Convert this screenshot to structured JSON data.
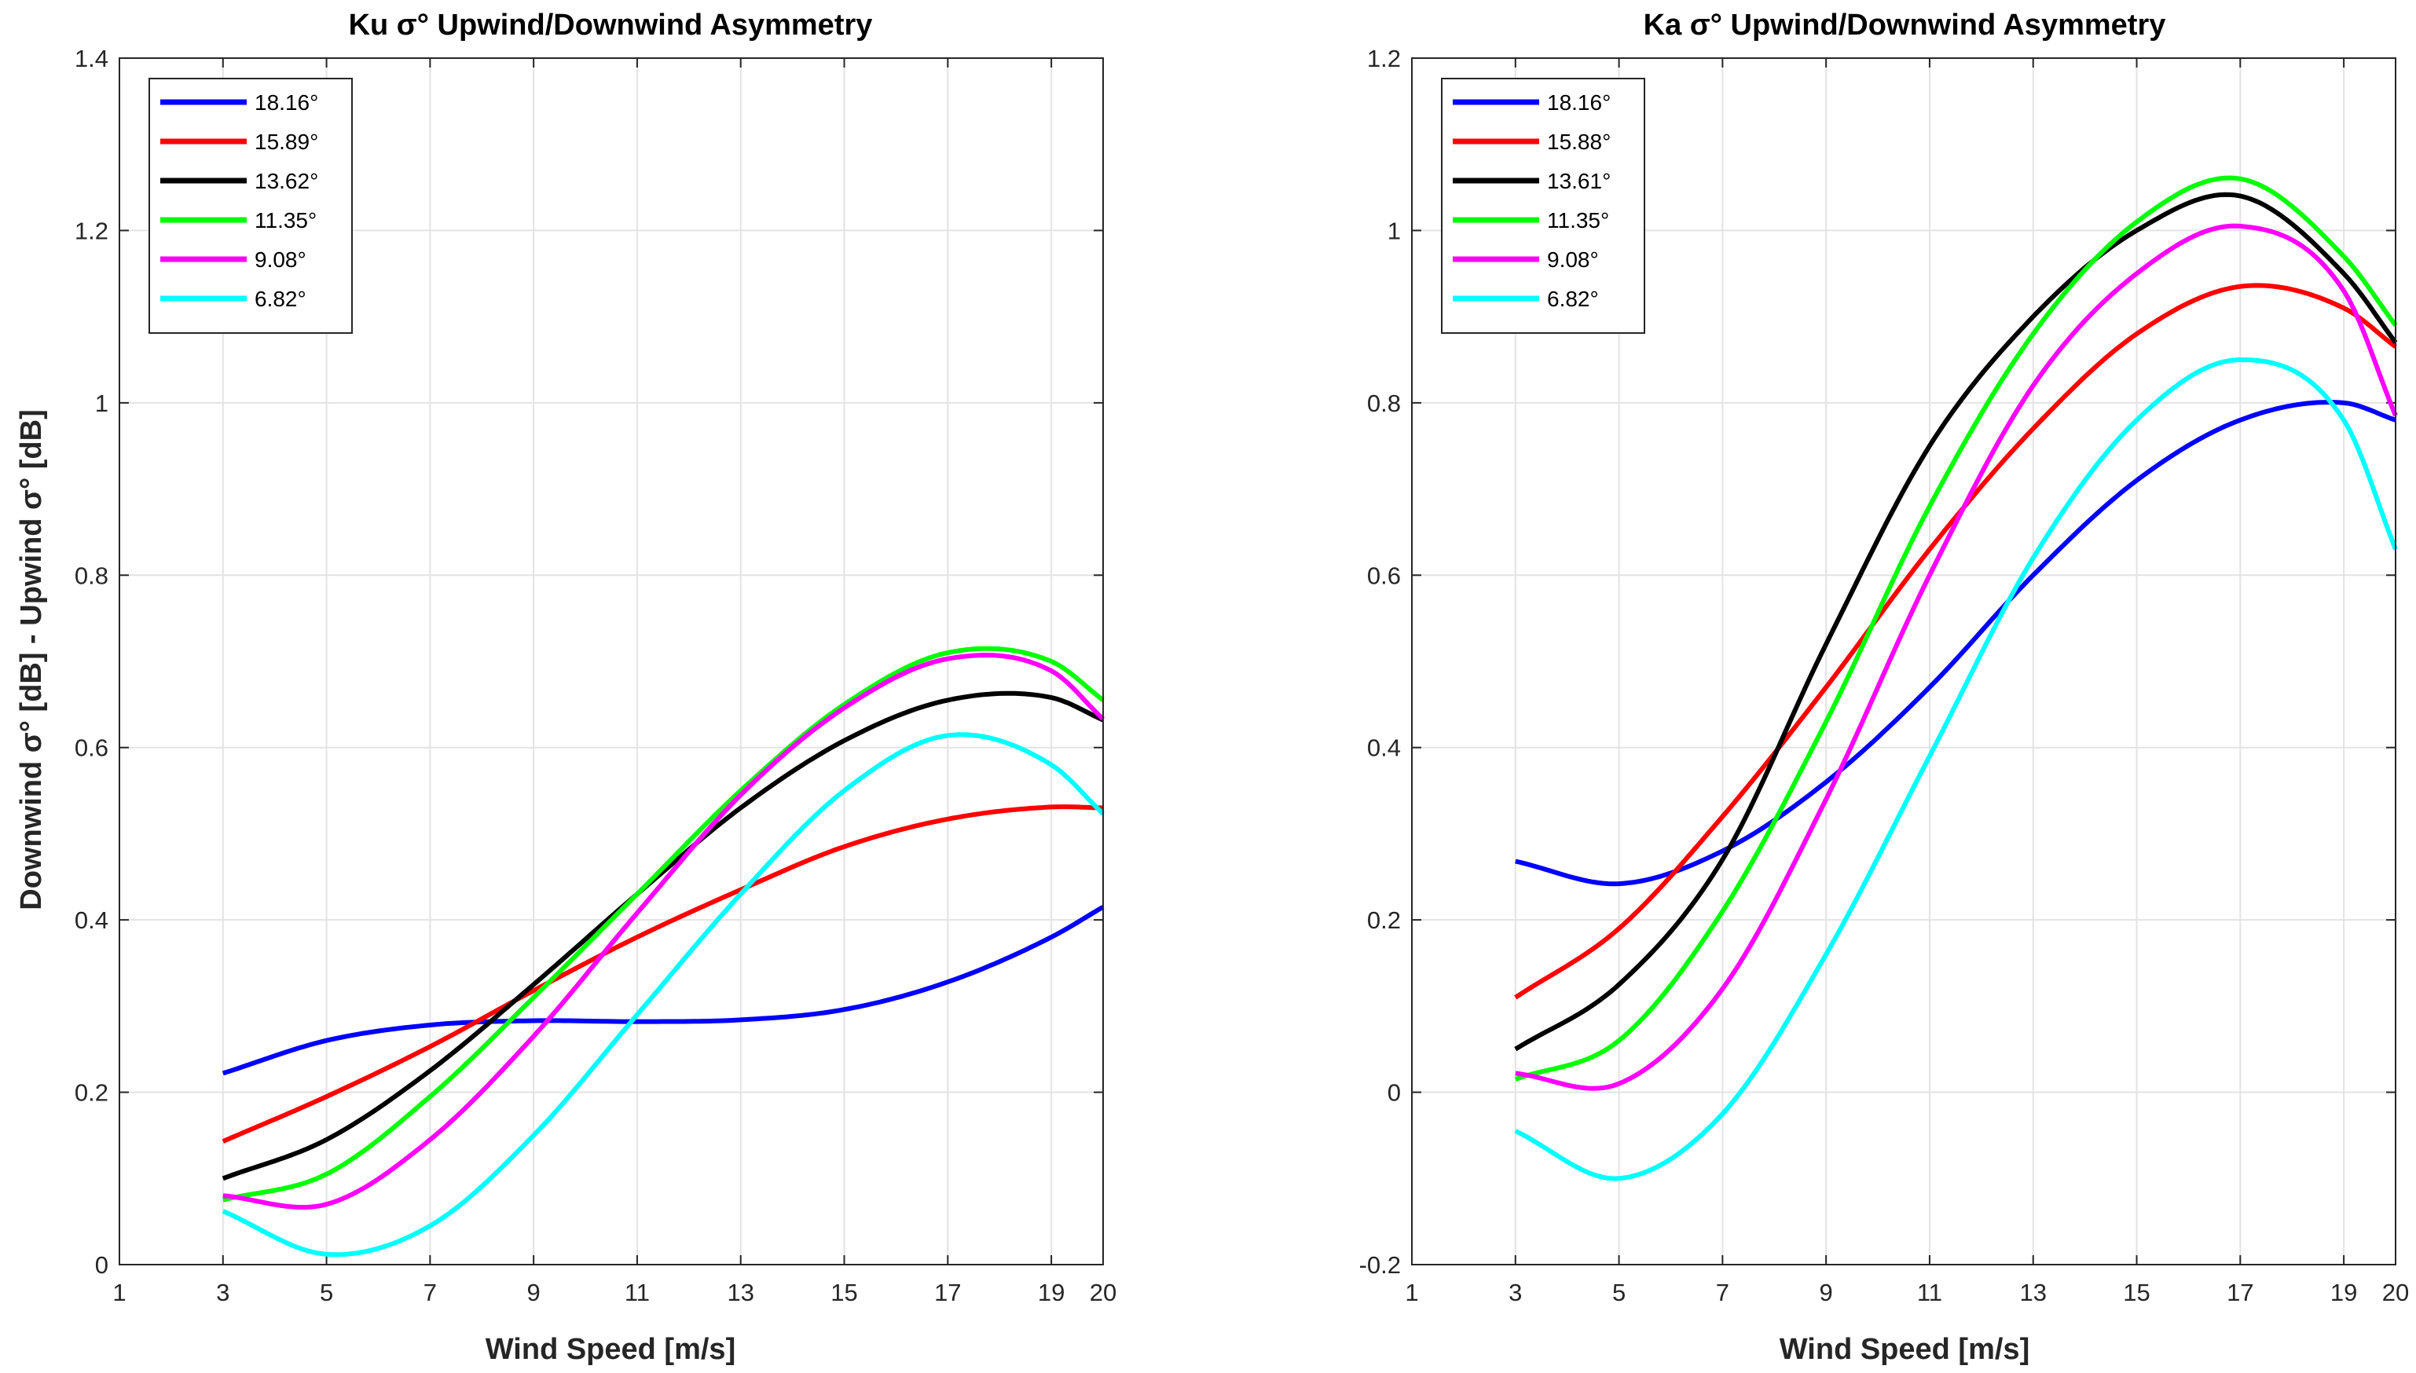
{
  "figure": {
    "legend_location": "top-left"
  },
  "chart_data": [
    {
      "type": "line",
      "title": "Ku σ° Upwind/Downwind Asymmetry",
      "xlabel": "Wind Speed [m/s]",
      "ylabel": "Downwind σ° [dB] - Upwind σ° [dB]",
      "xlim": [
        1,
        20
      ],
      "ylim": [
        0,
        1.4
      ],
      "xticks": [
        1,
        3,
        5,
        7,
        9,
        11,
        13,
        15,
        17,
        19,
        20
      ],
      "xtick_labels": [
        "1",
        "3",
        "5",
        "7",
        "9",
        "11",
        "13",
        "15",
        "17",
        "19",
        "20"
      ],
      "yticks": [
        0,
        0.2,
        0.4,
        0.6,
        0.8,
        1.0,
        1.2,
        1.4
      ],
      "ytick_labels": [
        "0",
        "0.2",
        "0.4",
        "0.6",
        "0.8",
        "1",
        "1.2",
        "1.4"
      ],
      "grid": true,
      "legend_location": "top-left",
      "x": [
        3,
        5,
        7,
        9,
        11,
        13,
        15,
        17,
        19,
        20
      ],
      "series": [
        {
          "name": "18.16°",
          "color": "#0000ff",
          "values": [
            0.222,
            0.26,
            0.278,
            0.283,
            0.282,
            0.284,
            0.296,
            0.328,
            0.38,
            0.415
          ]
        },
        {
          "name": "15.89°",
          "color": "#ff0000",
          "values": [
            0.143,
            0.195,
            0.253,
            0.318,
            0.38,
            0.435,
            0.485,
            0.517,
            0.531,
            0.53
          ]
        },
        {
          "name": "13.62°",
          "color": "#000000",
          "values": [
            0.1,
            0.145,
            0.225,
            0.325,
            0.43,
            0.53,
            0.608,
            0.655,
            0.658,
            0.632
          ]
        },
        {
          "name": "11.35°",
          "color": "#00ff00",
          "values": [
            0.075,
            0.105,
            0.195,
            0.31,
            0.43,
            0.55,
            0.65,
            0.71,
            0.7,
            0.655
          ]
        },
        {
          "name": "9.08°",
          "color": "#ff00ff",
          "values": [
            0.08,
            0.07,
            0.145,
            0.265,
            0.408,
            0.545,
            0.646,
            0.703,
            0.689,
            0.633
          ]
        },
        {
          "name": "6.82°",
          "color": "#00ffff",
          "values": [
            0.062,
            0.012,
            0.045,
            0.15,
            0.29,
            0.43,
            0.55,
            0.614,
            0.58,
            0.523
          ]
        }
      ]
    },
    {
      "type": "line",
      "title": "Ka σ° Upwind/Downwind Asymmetry",
      "xlabel": "Wind Speed [m/s]",
      "ylabel": "",
      "xlim": [
        1,
        20
      ],
      "ylim": [
        -0.2,
        1.2
      ],
      "xticks": [
        1,
        3,
        5,
        7,
        9,
        11,
        13,
        15,
        17,
        19,
        20
      ],
      "xtick_labels": [
        "1",
        "3",
        "5",
        "7",
        "9",
        "11",
        "13",
        "15",
        "17",
        "19",
        "20"
      ],
      "yticks": [
        -0.2,
        0,
        0.2,
        0.4,
        0.6,
        0.8,
        1.0,
        1.2
      ],
      "ytick_labels": [
        "-0.2",
        "0",
        "0.2",
        "0.4",
        "0.6",
        "0.8",
        "1",
        "1.2"
      ],
      "grid": true,
      "legend_location": "top-left",
      "x": [
        3,
        5,
        7,
        9,
        11,
        13,
        15,
        17,
        19,
        20
      ],
      "series": [
        {
          "name": "18.16°",
          "color": "#0000ff",
          "values": [
            0.268,
            0.242,
            0.28,
            0.36,
            0.47,
            0.6,
            0.71,
            0.78,
            0.8,
            0.78
          ]
        },
        {
          "name": "15.88°",
          "color": "#ff0000",
          "values": [
            0.11,
            0.19,
            0.32,
            0.47,
            0.63,
            0.77,
            0.88,
            0.935,
            0.91,
            0.865
          ]
        },
        {
          "name": "13.61°",
          "color": "#000000",
          "values": [
            0.05,
            0.125,
            0.27,
            0.52,
            0.75,
            0.9,
            1.0,
            1.04,
            0.95,
            0.87
          ]
        },
        {
          "name": "11.35°",
          "color": "#00ff00",
          "values": [
            0.015,
            0.06,
            0.21,
            0.43,
            0.68,
            0.88,
            1.01,
            1.06,
            0.97,
            0.89
          ]
        },
        {
          "name": "9.08°",
          "color": "#ff00ff",
          "values": [
            0.022,
            0.01,
            0.12,
            0.34,
            0.6,
            0.82,
            0.95,
            1.005,
            0.93,
            0.785
          ]
        },
        {
          "name": "6.82°",
          "color": "#00ffff",
          "values": [
            -0.045,
            -0.1,
            -0.025,
            0.16,
            0.39,
            0.62,
            0.78,
            0.85,
            0.78,
            0.63
          ]
        }
      ]
    }
  ]
}
